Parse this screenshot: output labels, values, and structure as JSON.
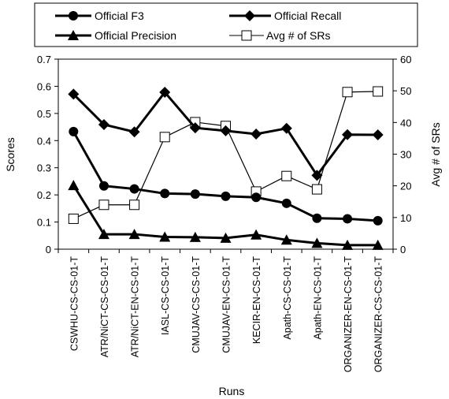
{
  "chart_data": {
    "type": "line",
    "categories": [
      "CSWHU-CS-CS-01-T",
      "ATR/NiCT-CS-CS-01-T",
      "ATR/NiCT-EN-CS-01-T",
      "IASL-CS-CS-01-T",
      "CMUJAV-CS-CS-01-T",
      "CMUJAV-EN-CS-01-T",
      "KECIR-EN-CS-01-T",
      "Apath-CS-CS-01-T",
      "Apath-EN-CS-01-T",
      "ORGANIZER-EN-CS-01-T",
      "ORGANIZER-CS-CS-01-T"
    ],
    "xlabel": "Runs",
    "ylabel": "Scores",
    "y2label": "Avg # of SRs",
    "ylim": [
      0,
      0.7
    ],
    "y2lim": [
      0,
      60
    ],
    "yticks": [
      "0",
      "0.1",
      "0.2",
      "0.3",
      "0.4",
      "0.5",
      "0.6",
      "0.7"
    ],
    "y2ticks": [
      "0",
      "10",
      "20",
      "30",
      "40",
      "50",
      "60"
    ],
    "legend_position": "top",
    "grid": false,
    "series": [
      {
        "name": "Official F3",
        "axis": "left",
        "marker": "circle",
        "color": "#000000",
        "values": [
          0.433,
          0.233,
          0.222,
          0.205,
          0.203,
          0.195,
          0.191,
          0.169,
          0.114,
          0.112,
          0.105
        ]
      },
      {
        "name": "Official Recall",
        "axis": "left",
        "marker": "diamond",
        "color": "#000000",
        "values": [
          0.571,
          0.459,
          0.432,
          0.578,
          0.447,
          0.436,
          0.424,
          0.445,
          0.272,
          0.422,
          0.421
        ]
      },
      {
        "name": "Official Precision",
        "axis": "left",
        "marker": "triangle",
        "color": "#000000",
        "values": [
          0.235,
          0.055,
          0.055,
          0.045,
          0.044,
          0.041,
          0.053,
          0.034,
          0.022,
          0.015,
          0.015
        ]
      },
      {
        "name": "Avg # of SRs",
        "axis": "right",
        "marker": "square-open",
        "color": "#000000",
        "values": [
          9.6,
          14.0,
          14.0,
          35.4,
          40.1,
          38.9,
          18.2,
          23.1,
          18.9,
          49.6,
          49.8
        ]
      }
    ]
  }
}
